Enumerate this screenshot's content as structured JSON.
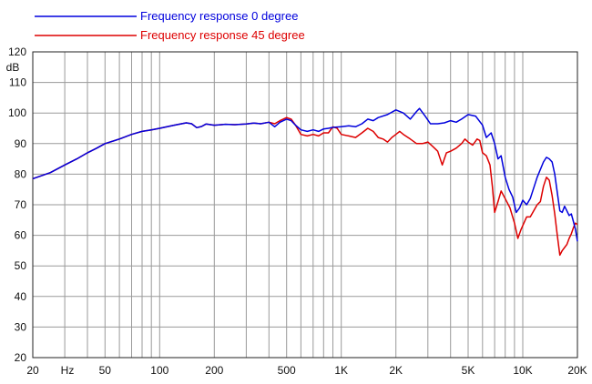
{
  "chart_data": {
    "type": "line",
    "title": "",
    "xlabel": "Hz",
    "ylabel": "dB",
    "x_scale": "log",
    "xlim": [
      20,
      20000
    ],
    "ylim": [
      20,
      120
    ],
    "grid": true,
    "legend_position": "top-left",
    "x_ticks": [
      {
        "value": 20,
        "label": "20"
      },
      {
        "value": 50,
        "label": "50"
      },
      {
        "value": 100,
        "label": "100"
      },
      {
        "value": 200,
        "label": "200"
      },
      {
        "value": 500,
        "label": "500"
      },
      {
        "value": 1000,
        "label": "1K"
      },
      {
        "value": 2000,
        "label": "2K"
      },
      {
        "value": 5000,
        "label": "5K"
      },
      {
        "value": 10000,
        "label": "10K"
      },
      {
        "value": 20000,
        "label": "20K"
      }
    ],
    "y_ticks": [
      120,
      110,
      100,
      90,
      80,
      70,
      60,
      50,
      40,
      30,
      20
    ],
    "series": [
      {
        "name": "Frequency response 0 degree",
        "color": "#0000dd",
        "points": [
          [
            20,
            78.5
          ],
          [
            25,
            80.5
          ],
          [
            30,
            83
          ],
          [
            35,
            85
          ],
          [
            40,
            87
          ],
          [
            45,
            88.5
          ],
          [
            50,
            90
          ],
          [
            60,
            91.5
          ],
          [
            70,
            93
          ],
          [
            80,
            94
          ],
          [
            90,
            94.5
          ],
          [
            100,
            95
          ],
          [
            120,
            96
          ],
          [
            140,
            96.8
          ],
          [
            150,
            96.5
          ],
          [
            160,
            95.2
          ],
          [
            170,
            95.6
          ],
          [
            180,
            96.4
          ],
          [
            200,
            96
          ],
          [
            230,
            96.3
          ],
          [
            260,
            96.2
          ],
          [
            300,
            96.4
          ],
          [
            330,
            96.7
          ],
          [
            360,
            96.5
          ],
          [
            400,
            97
          ],
          [
            430,
            95.5
          ],
          [
            460,
            97
          ],
          [
            500,
            98
          ],
          [
            530,
            97.5
          ],
          [
            560,
            96
          ],
          [
            600,
            94.5
          ],
          [
            650,
            94
          ],
          [
            700,
            94.5
          ],
          [
            750,
            94
          ],
          [
            800,
            94.8
          ],
          [
            850,
            95
          ],
          [
            900,
            95.3
          ],
          [
            1000,
            95.5
          ],
          [
            1100,
            95.8
          ],
          [
            1200,
            95.5
          ],
          [
            1300,
            96.5
          ],
          [
            1400,
            98
          ],
          [
            1500,
            97.5
          ],
          [
            1600,
            98.5
          ],
          [
            1800,
            99.5
          ],
          [
            2000,
            101
          ],
          [
            2200,
            100
          ],
          [
            2400,
            98
          ],
          [
            2600,
            100.5
          ],
          [
            2700,
            101.5
          ],
          [
            2900,
            99
          ],
          [
            3100,
            96.5
          ],
          [
            3400,
            96.5
          ],
          [
            3700,
            96.8
          ],
          [
            4000,
            97.5
          ],
          [
            4300,
            97
          ],
          [
            4600,
            98
          ],
          [
            5000,
            99.5
          ],
          [
            5500,
            99
          ],
          [
            6000,
            96
          ],
          [
            6300,
            92
          ],
          [
            6700,
            93.5
          ],
          [
            7000,
            90
          ],
          [
            7300,
            85
          ],
          [
            7600,
            86
          ],
          [
            8000,
            79
          ],
          [
            8400,
            75
          ],
          [
            8800,
            72.5
          ],
          [
            9200,
            67.5
          ],
          [
            9600,
            69
          ],
          [
            10000,
            71.5
          ],
          [
            10500,
            70
          ],
          [
            11000,
            72
          ],
          [
            12000,
            79
          ],
          [
            13000,
            84
          ],
          [
            13500,
            85.5
          ],
          [
            14000,
            85
          ],
          [
            14500,
            84
          ],
          [
            15000,
            80
          ],
          [
            15500,
            74
          ],
          [
            16000,
            68
          ],
          [
            16500,
            67.5
          ],
          [
            17000,
            69.5
          ],
          [
            17500,
            68
          ],
          [
            18000,
            66.5
          ],
          [
            18500,
            67
          ],
          [
            19000,
            64.5
          ],
          [
            19500,
            62
          ],
          [
            20000,
            58
          ]
        ]
      },
      {
        "name": "Frequency response 45 degree",
        "color": "#dd0000",
        "points": [
          [
            20,
            78.5
          ],
          [
            25,
            80.5
          ],
          [
            30,
            83
          ],
          [
            35,
            85
          ],
          [
            40,
            87
          ],
          [
            45,
            88.5
          ],
          [
            50,
            90
          ],
          [
            60,
            91.5
          ],
          [
            70,
            93
          ],
          [
            80,
            94
          ],
          [
            90,
            94.5
          ],
          [
            100,
            95
          ],
          [
            120,
            96
          ],
          [
            140,
            96.8
          ],
          [
            150,
            96.5
          ],
          [
            160,
            95.2
          ],
          [
            170,
            95.6
          ],
          [
            180,
            96.4
          ],
          [
            200,
            96
          ],
          [
            230,
            96.3
          ],
          [
            260,
            96.2
          ],
          [
            300,
            96.4
          ],
          [
            330,
            96.7
          ],
          [
            360,
            96.5
          ],
          [
            400,
            97
          ],
          [
            430,
            96.5
          ],
          [
            460,
            97.5
          ],
          [
            500,
            98.5
          ],
          [
            530,
            98
          ],
          [
            560,
            96
          ],
          [
            600,
            93
          ],
          [
            650,
            92.5
          ],
          [
            700,
            93
          ],
          [
            750,
            92.5
          ],
          [
            800,
            93.5
          ],
          [
            850,
            93.5
          ],
          [
            900,
            95.5
          ],
          [
            950,
            95
          ],
          [
            1000,
            93
          ],
          [
            1100,
            92.5
          ],
          [
            1200,
            92
          ],
          [
            1300,
            93.5
          ],
          [
            1400,
            95
          ],
          [
            1500,
            94
          ],
          [
            1600,
            92
          ],
          [
            1700,
            91.5
          ],
          [
            1800,
            90.5
          ],
          [
            1900,
            92
          ],
          [
            2000,
            93
          ],
          [
            2100,
            94
          ],
          [
            2200,
            93
          ],
          [
            2400,
            91.5
          ],
          [
            2600,
            90
          ],
          [
            2800,
            90
          ],
          [
            3000,
            90.5
          ],
          [
            3200,
            89
          ],
          [
            3400,
            87.5
          ],
          [
            3600,
            83
          ],
          [
            3800,
            87
          ],
          [
            4000,
            87.5
          ],
          [
            4300,
            88.5
          ],
          [
            4600,
            90
          ],
          [
            4800,
            91.5
          ],
          [
            5000,
            90.5
          ],
          [
            5300,
            89.5
          ],
          [
            5600,
            91.5
          ],
          [
            5800,
            91
          ],
          [
            6000,
            87
          ],
          [
            6300,
            86
          ],
          [
            6600,
            83
          ],
          [
            6800,
            76
          ],
          [
            7000,
            67.5
          ],
          [
            7300,
            71
          ],
          [
            7600,
            74.5
          ],
          [
            8000,
            72
          ],
          [
            8500,
            69
          ],
          [
            9000,
            64
          ],
          [
            9400,
            59
          ],
          [
            9800,
            62
          ],
          [
            10500,
            66
          ],
          [
            11000,
            66
          ],
          [
            12000,
            70
          ],
          [
            12500,
            71
          ],
          [
            13000,
            76
          ],
          [
            13500,
            79
          ],
          [
            14000,
            78
          ],
          [
            14500,
            73
          ],
          [
            15000,
            67
          ],
          [
            15500,
            60
          ],
          [
            16000,
            53.5
          ],
          [
            16500,
            55
          ],
          [
            17000,
            56
          ],
          [
            17500,
            57
          ],
          [
            18000,
            59
          ],
          [
            18500,
            60.5
          ],
          [
            19000,
            62.5
          ],
          [
            19500,
            64
          ],
          [
            20000,
            63.5
          ]
        ]
      }
    ]
  }
}
